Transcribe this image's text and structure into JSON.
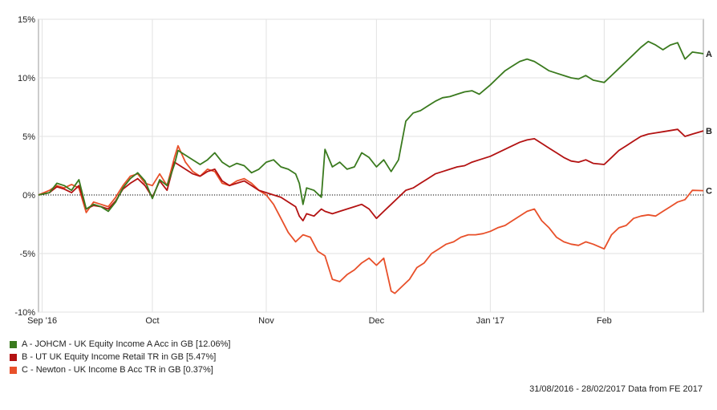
{
  "chart_data": {
    "type": "line",
    "ylim": [
      -10,
      15
    ],
    "yticks": [
      15,
      10,
      5,
      0,
      -5,
      -10
    ],
    "ytick_labels": [
      "15%",
      "10%",
      "5%",
      "0%",
      "-5%",
      "-10%"
    ],
    "x_start": "2016-08-31",
    "x_end": "2017-02-28",
    "xticks": [
      {
        "date": "2016-09-01",
        "label": "Sep '16"
      },
      {
        "date": "2016-10-01",
        "label": "Oct"
      },
      {
        "date": "2016-11-01",
        "label": "Nov"
      },
      {
        "date": "2016-12-01",
        "label": "Dec"
      },
      {
        "date": "2017-01-01",
        "label": "Jan '17"
      },
      {
        "date": "2017-02-01",
        "label": "Feb"
      }
    ],
    "grid": true,
    "legend_position": "bottom-left",
    "series": [
      {
        "name": "A - JOHCM - UK Equity Income A Acc in GB [12.06%]",
        "end_label": "A",
        "color": "#3a7a1e",
        "points": [
          [
            "2016-08-31",
            0
          ],
          [
            "2016-09-03",
            0.2
          ],
          [
            "2016-09-05",
            1.0
          ],
          [
            "2016-09-07",
            0.8
          ],
          [
            "2016-09-09",
            0.4
          ],
          [
            "2016-09-11",
            1.3
          ],
          [
            "2016-09-13",
            -1.2
          ],
          [
            "2016-09-15",
            -0.8
          ],
          [
            "2016-09-17",
            -1.0
          ],
          [
            "2016-09-19",
            -1.4
          ],
          [
            "2016-09-21",
            -0.6
          ],
          [
            "2016-09-23",
            0.6
          ],
          [
            "2016-09-25",
            1.4
          ],
          [
            "2016-09-27",
            1.9
          ],
          [
            "2016-09-29",
            1.2
          ],
          [
            "2016-10-01",
            -0.3
          ],
          [
            "2016-10-03",
            1.3
          ],
          [
            "2016-10-05",
            0.8
          ],
          [
            "2016-10-07",
            2.6
          ],
          [
            "2016-10-08",
            3.8
          ],
          [
            "2016-10-10",
            3.4
          ],
          [
            "2016-10-12",
            3.0
          ],
          [
            "2016-10-14",
            2.6
          ],
          [
            "2016-10-16",
            3.0
          ],
          [
            "2016-10-18",
            3.6
          ],
          [
            "2016-10-20",
            2.8
          ],
          [
            "2016-10-22",
            2.4
          ],
          [
            "2016-10-24",
            2.7
          ],
          [
            "2016-10-26",
            2.5
          ],
          [
            "2016-10-28",
            1.9
          ],
          [
            "2016-10-30",
            2.2
          ],
          [
            "2016-11-01",
            2.8
          ],
          [
            "2016-11-03",
            3.0
          ],
          [
            "2016-11-05",
            2.4
          ],
          [
            "2016-11-07",
            2.2
          ],
          [
            "2016-11-09",
            1.8
          ],
          [
            "2016-11-10",
            1.0
          ],
          [
            "2016-11-11",
            -0.8
          ],
          [
            "2016-11-12",
            0.6
          ],
          [
            "2016-11-14",
            0.4
          ],
          [
            "2016-11-16",
            -0.2
          ],
          [
            "2016-11-17",
            3.9
          ],
          [
            "2016-11-19",
            2.4
          ],
          [
            "2016-11-21",
            2.8
          ],
          [
            "2016-11-23",
            2.2
          ],
          [
            "2016-11-25",
            2.4
          ],
          [
            "2016-11-27",
            3.6
          ],
          [
            "2016-11-29",
            3.2
          ],
          [
            "2016-12-01",
            2.4
          ],
          [
            "2016-12-03",
            3.0
          ],
          [
            "2016-12-05",
            2.0
          ],
          [
            "2016-12-07",
            3.0
          ],
          [
            "2016-12-09",
            6.3
          ],
          [
            "2016-12-11",
            7.0
          ],
          [
            "2016-12-13",
            7.2
          ],
          [
            "2016-12-15",
            7.6
          ],
          [
            "2016-12-17",
            8.0
          ],
          [
            "2016-12-19",
            8.3
          ],
          [
            "2016-12-21",
            8.4
          ],
          [
            "2016-12-23",
            8.6
          ],
          [
            "2016-12-25",
            8.8
          ],
          [
            "2016-12-27",
            8.9
          ],
          [
            "2016-12-29",
            8.6
          ],
          [
            "2017-01-01",
            9.4
          ],
          [
            "2017-01-03",
            10.0
          ],
          [
            "2017-01-05",
            10.6
          ],
          [
            "2017-01-07",
            11.0
          ],
          [
            "2017-01-09",
            11.4
          ],
          [
            "2017-01-11",
            11.6
          ],
          [
            "2017-01-13",
            11.4
          ],
          [
            "2017-01-15",
            11.0
          ],
          [
            "2017-01-17",
            10.6
          ],
          [
            "2017-01-19",
            10.4
          ],
          [
            "2017-01-21",
            10.2
          ],
          [
            "2017-01-23",
            10.0
          ],
          [
            "2017-01-25",
            9.9
          ],
          [
            "2017-01-27",
            10.2
          ],
          [
            "2017-01-29",
            9.8
          ],
          [
            "2017-02-01",
            9.6
          ],
          [
            "2017-02-03",
            10.2
          ],
          [
            "2017-02-05",
            10.8
          ],
          [
            "2017-02-07",
            11.4
          ],
          [
            "2017-02-09",
            12.0
          ],
          [
            "2017-02-11",
            12.6
          ],
          [
            "2017-02-13",
            13.1
          ],
          [
            "2017-02-15",
            12.8
          ],
          [
            "2017-02-17",
            12.4
          ],
          [
            "2017-02-19",
            12.8
          ],
          [
            "2017-02-21",
            13.0
          ],
          [
            "2017-02-23",
            11.6
          ],
          [
            "2017-02-25",
            12.2
          ],
          [
            "2017-02-28",
            12.06
          ]
        ]
      },
      {
        "name": "B - UT UK Equity Income Retail TR in GB [5.47%]",
        "end_label": "B",
        "color": "#b31212",
        "points": [
          [
            "2016-08-31",
            0
          ],
          [
            "2016-09-03",
            0.2
          ],
          [
            "2016-09-05",
            0.7
          ],
          [
            "2016-09-07",
            0.5
          ],
          [
            "2016-09-09",
            0.2
          ],
          [
            "2016-09-11",
            0.8
          ],
          [
            "2016-09-13",
            -1.2
          ],
          [
            "2016-09-15",
            -0.9
          ],
          [
            "2016-09-17",
            -1.0
          ],
          [
            "2016-09-19",
            -1.2
          ],
          [
            "2016-09-21",
            -0.5
          ],
          [
            "2016-09-23",
            0.5
          ],
          [
            "2016-09-25",
            1.0
          ],
          [
            "2016-09-27",
            1.4
          ],
          [
            "2016-09-29",
            0.8
          ],
          [
            "2016-10-01",
            -0.2
          ],
          [
            "2016-10-03",
            1.2
          ],
          [
            "2016-10-05",
            0.4
          ],
          [
            "2016-10-07",
            2.8
          ],
          [
            "2016-10-08",
            2.6
          ],
          [
            "2016-10-10",
            2.2
          ],
          [
            "2016-10-12",
            1.8
          ],
          [
            "2016-10-14",
            1.6
          ],
          [
            "2016-10-16",
            2.0
          ],
          [
            "2016-10-18",
            2.2
          ],
          [
            "2016-10-20",
            1.2
          ],
          [
            "2016-10-22",
            0.8
          ],
          [
            "2016-10-24",
            1.0
          ],
          [
            "2016-10-26",
            1.2
          ],
          [
            "2016-10-28",
            0.8
          ],
          [
            "2016-10-30",
            0.4
          ],
          [
            "2016-11-01",
            0.2
          ],
          [
            "2016-11-03",
            0.0
          ],
          [
            "2016-11-05",
            -0.2
          ],
          [
            "2016-11-07",
            -0.6
          ],
          [
            "2016-11-09",
            -1.0
          ],
          [
            "2016-11-10",
            -1.8
          ],
          [
            "2016-11-11",
            -2.2
          ],
          [
            "2016-11-12",
            -1.6
          ],
          [
            "2016-11-14",
            -1.8
          ],
          [
            "2016-11-16",
            -1.2
          ],
          [
            "2016-11-17",
            -1.4
          ],
          [
            "2016-11-19",
            -1.6
          ],
          [
            "2016-11-21",
            -1.4
          ],
          [
            "2016-11-23",
            -1.2
          ],
          [
            "2016-11-25",
            -1.0
          ],
          [
            "2016-11-27",
            -0.8
          ],
          [
            "2016-11-29",
            -1.2
          ],
          [
            "2016-12-01",
            -2.0
          ],
          [
            "2016-12-03",
            -1.4
          ],
          [
            "2016-12-05",
            -0.8
          ],
          [
            "2016-12-07",
            -0.2
          ],
          [
            "2016-12-09",
            0.4
          ],
          [
            "2016-12-11",
            0.6
          ],
          [
            "2016-12-13",
            1.0
          ],
          [
            "2016-12-15",
            1.4
          ],
          [
            "2016-12-17",
            1.8
          ],
          [
            "2016-12-19",
            2.0
          ],
          [
            "2016-12-21",
            2.2
          ],
          [
            "2016-12-23",
            2.4
          ],
          [
            "2016-12-25",
            2.5
          ],
          [
            "2016-12-27",
            2.8
          ],
          [
            "2016-12-29",
            3.0
          ],
          [
            "2017-01-01",
            3.3
          ],
          [
            "2017-01-03",
            3.6
          ],
          [
            "2017-01-05",
            3.9
          ],
          [
            "2017-01-07",
            4.2
          ],
          [
            "2017-01-09",
            4.5
          ],
          [
            "2017-01-11",
            4.7
          ],
          [
            "2017-01-13",
            4.8
          ],
          [
            "2017-01-15",
            4.4
          ],
          [
            "2017-01-17",
            4.0
          ],
          [
            "2017-01-19",
            3.6
          ],
          [
            "2017-01-21",
            3.2
          ],
          [
            "2017-01-23",
            2.9
          ],
          [
            "2017-01-25",
            2.8
          ],
          [
            "2017-01-27",
            3.0
          ],
          [
            "2017-01-29",
            2.7
          ],
          [
            "2017-02-01",
            2.6
          ],
          [
            "2017-02-03",
            3.2
          ],
          [
            "2017-02-05",
            3.8
          ],
          [
            "2017-02-07",
            4.2
          ],
          [
            "2017-02-09",
            4.6
          ],
          [
            "2017-02-11",
            5.0
          ],
          [
            "2017-02-13",
            5.2
          ],
          [
            "2017-02-15",
            5.3
          ],
          [
            "2017-02-17",
            5.4
          ],
          [
            "2017-02-19",
            5.5
          ],
          [
            "2017-02-21",
            5.6
          ],
          [
            "2017-02-23",
            5.0
          ],
          [
            "2017-02-25",
            5.2
          ],
          [
            "2017-02-28",
            5.47
          ]
        ]
      },
      {
        "name": "C - Newton - UK Income B Acc TR in GB [0.37%]",
        "end_label": "C",
        "color": "#e8502a",
        "points": [
          [
            "2016-08-31",
            0
          ],
          [
            "2016-09-03",
            0.4
          ],
          [
            "2016-09-05",
            0.8
          ],
          [
            "2016-09-07",
            0.6
          ],
          [
            "2016-09-09",
            0.9
          ],
          [
            "2016-09-11",
            0.6
          ],
          [
            "2016-09-13",
            -1.5
          ],
          [
            "2016-09-15",
            -0.6
          ],
          [
            "2016-09-17",
            -0.8
          ],
          [
            "2016-09-19",
            -1.0
          ],
          [
            "2016-09-21",
            -0.2
          ],
          [
            "2016-09-23",
            0.8
          ],
          [
            "2016-09-25",
            1.6
          ],
          [
            "2016-09-27",
            1.8
          ],
          [
            "2016-09-29",
            1.0
          ],
          [
            "2016-10-01",
            0.8
          ],
          [
            "2016-10-03",
            1.8
          ],
          [
            "2016-10-05",
            0.8
          ],
          [
            "2016-10-07",
            3.2
          ],
          [
            "2016-10-08",
            4.2
          ],
          [
            "2016-10-10",
            2.8
          ],
          [
            "2016-10-12",
            2.0
          ],
          [
            "2016-10-14",
            1.6
          ],
          [
            "2016-10-16",
            2.2
          ],
          [
            "2016-10-18",
            2.0
          ],
          [
            "2016-10-20",
            1.0
          ],
          [
            "2016-10-22",
            0.8
          ],
          [
            "2016-10-24",
            1.2
          ],
          [
            "2016-10-26",
            1.4
          ],
          [
            "2016-10-28",
            1.0
          ],
          [
            "2016-10-30",
            0.4
          ],
          [
            "2016-11-01",
            0.0
          ],
          [
            "2016-11-03",
            -0.8
          ],
          [
            "2016-11-05",
            -2.0
          ],
          [
            "2016-11-07",
            -3.2
          ],
          [
            "2016-11-09",
            -4.0
          ],
          [
            "2016-11-11",
            -3.4
          ],
          [
            "2016-11-13",
            -3.6
          ],
          [
            "2016-11-15",
            -4.8
          ],
          [
            "2016-11-17",
            -5.2
          ],
          [
            "2016-11-19",
            -7.2
          ],
          [
            "2016-11-21",
            -7.4
          ],
          [
            "2016-11-23",
            -6.8
          ],
          [
            "2016-11-25",
            -6.4
          ],
          [
            "2016-11-27",
            -5.8
          ],
          [
            "2016-11-29",
            -5.4
          ],
          [
            "2016-12-01",
            -6.0
          ],
          [
            "2016-12-03",
            -5.4
          ],
          [
            "2016-12-05",
            -8.2
          ],
          [
            "2016-12-06",
            -8.4
          ],
          [
            "2016-12-08",
            -7.8
          ],
          [
            "2016-12-10",
            -7.2
          ],
          [
            "2016-12-12",
            -6.2
          ],
          [
            "2016-12-14",
            -5.8
          ],
          [
            "2016-12-16",
            -5.0
          ],
          [
            "2016-12-18",
            -4.6
          ],
          [
            "2016-12-20",
            -4.2
          ],
          [
            "2016-12-22",
            -4.0
          ],
          [
            "2016-12-24",
            -3.6
          ],
          [
            "2016-12-26",
            -3.4
          ],
          [
            "2016-12-28",
            -3.4
          ],
          [
            "2016-12-30",
            -3.3
          ],
          [
            "2017-01-01",
            -3.1
          ],
          [
            "2017-01-03",
            -2.8
          ],
          [
            "2017-01-05",
            -2.6
          ],
          [
            "2017-01-07",
            -2.2
          ],
          [
            "2017-01-09",
            -1.8
          ],
          [
            "2017-01-11",
            -1.4
          ],
          [
            "2017-01-13",
            -1.2
          ],
          [
            "2017-01-15",
            -2.2
          ],
          [
            "2017-01-17",
            -2.8
          ],
          [
            "2017-01-19",
            -3.6
          ],
          [
            "2017-01-21",
            -4.0
          ],
          [
            "2017-01-23",
            -4.2
          ],
          [
            "2017-01-25",
            -4.3
          ],
          [
            "2017-01-27",
            -4.0
          ],
          [
            "2017-01-29",
            -4.2
          ],
          [
            "2017-02-01",
            -4.6
          ],
          [
            "2017-02-03",
            -3.4
          ],
          [
            "2017-02-05",
            -2.8
          ],
          [
            "2017-02-07",
            -2.6
          ],
          [
            "2017-02-09",
            -2.0
          ],
          [
            "2017-02-11",
            -1.8
          ],
          [
            "2017-02-13",
            -1.7
          ],
          [
            "2017-02-15",
            -1.8
          ],
          [
            "2017-02-17",
            -1.4
          ],
          [
            "2017-02-19",
            -1.0
          ],
          [
            "2017-02-21",
            -0.6
          ],
          [
            "2017-02-23",
            -0.4
          ],
          [
            "2017-02-25",
            0.4
          ],
          [
            "2017-02-28",
            0.37
          ]
        ]
      }
    ],
    "source_note": "31/08/2016 - 28/02/2017 Data from FE 2017"
  }
}
